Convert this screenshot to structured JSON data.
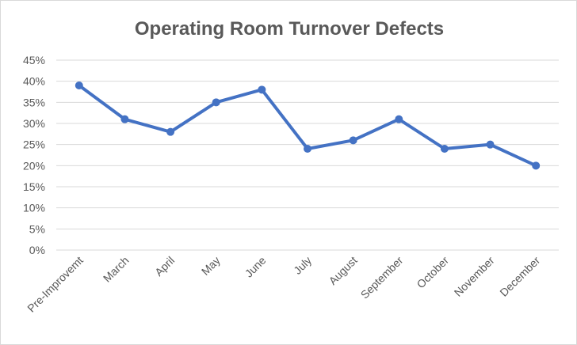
{
  "chart_data": {
    "type": "line",
    "title": "Operating Room Turnover Defects",
    "xlabel": "",
    "ylabel": "",
    "categories": [
      "Pre-Improvemt",
      "March",
      "April",
      "May",
      "June",
      "July",
      "August",
      "September",
      "October",
      "November",
      "December"
    ],
    "series": [
      {
        "values": [
          0.39,
          0.31,
          0.28,
          0.35,
          0.38,
          0.24,
          0.26,
          0.31,
          0.24,
          0.25,
          0.2
        ]
      }
    ],
    "ylim": [
      0,
      0.45
    ],
    "yticks": [
      "0%",
      "5%",
      "10%",
      "15%",
      "20%",
      "25%",
      "30%",
      "35%",
      "40%",
      "45%"
    ],
    "grid": true,
    "legend": "none",
    "colors": {
      "series": "#4472c4",
      "grid": "#d9d9d9",
      "text": "#595959"
    }
  }
}
